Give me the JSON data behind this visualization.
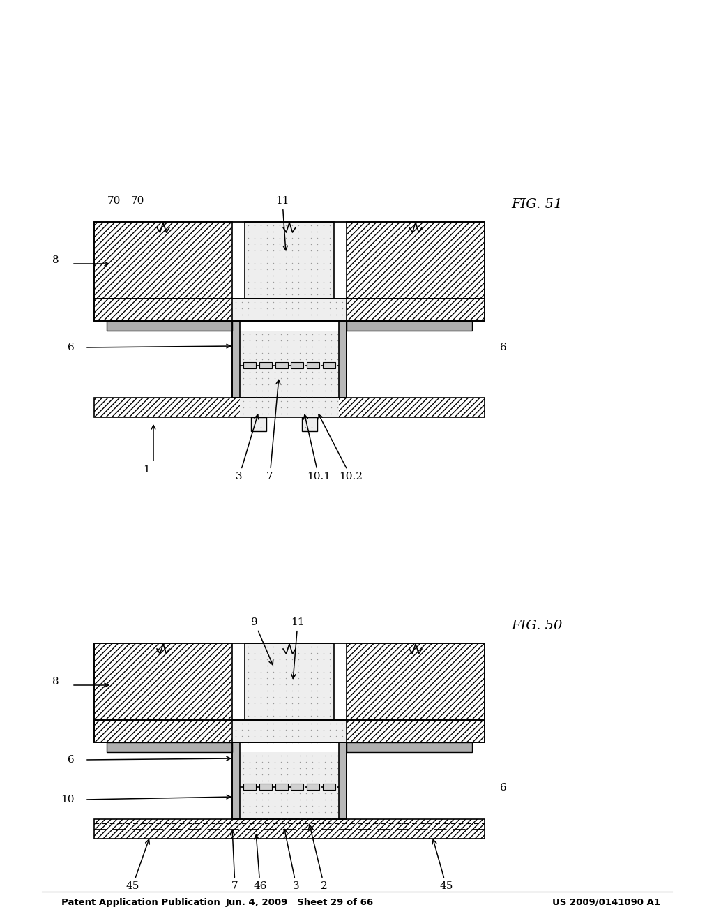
{
  "page_header_left": "Patent Application Publication",
  "page_header_center": "Jun. 4, 2009   Sheet 29 of 66",
  "page_header_right": "US 2009/0141090 A1",
  "fig50_label": "FIG. 50",
  "fig51_label": "FIG. 51",
  "bg_color": "#ffffff"
}
